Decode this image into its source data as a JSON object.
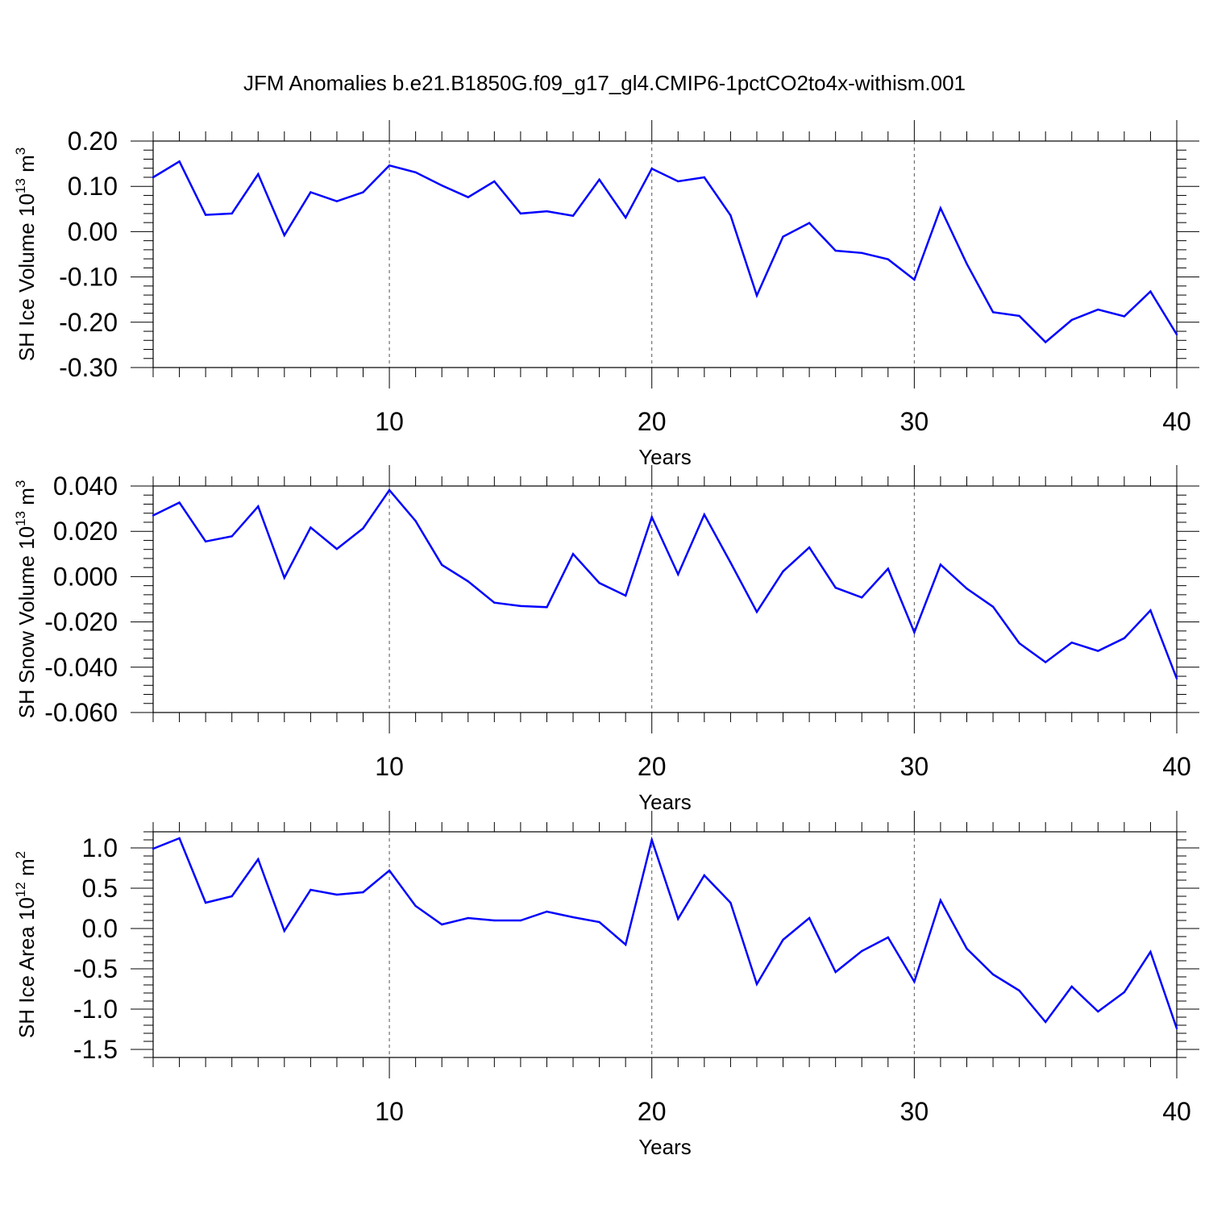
{
  "title": "JFM Anomalies b.e21.B1850G.f09_g17_gl4.CMIP6-1pctCO2to4x-withism.001",
  "colors": {
    "line": "#0000ff",
    "axis": "#000000",
    "grid": "#555555"
  },
  "chart_data": [
    {
      "type": "line",
      "ylabel_main": "SH Ice Volume 10",
      "ylabel_sup": "13",
      "ylabel_unit": " m",
      "ylabel_unit_sup": "3",
      "xlabel": "Years",
      "xlim": [
        1,
        40
      ],
      "ylim": [
        -0.3,
        0.2
      ],
      "x_ticks": [
        "10",
        "20",
        "30",
        "40"
      ],
      "y_ticks": [
        "0.20",
        "0.10",
        "0.00",
        "-0.10",
        "-0.20",
        "-0.30"
      ],
      "gridlines_x": [
        10,
        20,
        30
      ],
      "x": [
        1,
        2,
        3,
        4,
        5,
        6,
        7,
        8,
        9,
        10,
        11,
        12,
        13,
        14,
        15,
        16,
        17,
        18,
        19,
        20,
        21,
        22,
        23,
        24,
        25,
        26,
        27,
        28,
        29,
        30,
        31,
        32,
        33,
        34,
        35,
        36,
        37,
        38,
        39,
        40
      ],
      "values": [
        0.12,
        0.155,
        0.037,
        0.04,
        0.127,
        -0.008,
        0.087,
        0.067,
        0.087,
        0.146,
        0.131,
        0.102,
        0.076,
        0.111,
        0.04,
        0.045,
        0.035,
        0.115,
        0.031,
        0.139,
        0.111,
        0.12,
        0.036,
        -0.141,
        -0.011,
        0.019,
        -0.042,
        -0.047,
        -0.061,
        -0.106,
        0.052,
        -0.071,
        -0.178,
        -0.186,
        -0.244,
        -0.195,
        -0.172,
        -0.187,
        -0.132,
        -0.227
      ]
    },
    {
      "type": "line",
      "ylabel_main": "SH Snow Volume 10",
      "ylabel_sup": "13",
      "ylabel_unit": " m",
      "ylabel_unit_sup": "3",
      "xlabel": "Years",
      "xlim": [
        1,
        40
      ],
      "ylim": [
        -0.06,
        0.04
      ],
      "x_ticks": [
        "10",
        "20",
        "30",
        "40"
      ],
      "y_ticks": [
        "0.040",
        "0.020",
        "0.000",
        "-0.020",
        "-0.040",
        "-0.060"
      ],
      "gridlines_x": [
        10,
        20,
        30
      ],
      "x": [
        1,
        2,
        3,
        4,
        5,
        6,
        7,
        8,
        9,
        10,
        11,
        12,
        13,
        14,
        15,
        16,
        17,
        18,
        19,
        20,
        21,
        22,
        23,
        24,
        25,
        26,
        27,
        28,
        29,
        30,
        31,
        32,
        33,
        34,
        35,
        36,
        37,
        38,
        39,
        40
      ],
      "values": [
        0.027,
        0.0327,
        0.0155,
        0.0178,
        0.031,
        -0.0005,
        0.0217,
        0.0122,
        0.0213,
        0.0382,
        0.0246,
        0.0052,
        -0.0021,
        -0.0115,
        -0.013,
        -0.0135,
        0.01,
        -0.0028,
        -0.0084,
        0.0263,
        0.001,
        0.0274,
        0.0062,
        -0.0156,
        0.0023,
        0.0129,
        -0.0049,
        -0.0092,
        0.0035,
        -0.0246,
        0.0053,
        -0.0053,
        -0.0133,
        -0.0294,
        -0.0378,
        -0.0291,
        -0.0328,
        -0.0272,
        -0.0149,
        -0.045
      ]
    },
    {
      "type": "line",
      "ylabel_main": "SH Ice Area 10",
      "ylabel_sup": "12",
      "ylabel_unit": " m",
      "ylabel_unit_sup": "2",
      "xlabel": "Years",
      "xlim": [
        1,
        40
      ],
      "ylim": [
        -1.6,
        1.2
      ],
      "x_ticks": [
        "10",
        "20",
        "30",
        "40"
      ],
      "y_ticks": [
        "1.0",
        "0.5",
        "0.0",
        "-0.5",
        "-1.0",
        "-1.5"
      ],
      "gridlines_x": [
        10,
        20,
        30
      ],
      "x": [
        1,
        2,
        3,
        4,
        5,
        6,
        7,
        8,
        9,
        10,
        11,
        12,
        13,
        14,
        15,
        16,
        17,
        18,
        19,
        20,
        21,
        22,
        23,
        24,
        25,
        26,
        27,
        28,
        29,
        30,
        31,
        32,
        33,
        34,
        35,
        36,
        37,
        38,
        39,
        40
      ],
      "values": [
        0.99,
        1.12,
        0.32,
        0.4,
        0.86,
        -0.03,
        0.48,
        0.42,
        0.45,
        0.72,
        0.28,
        0.05,
        0.13,
        0.1,
        0.1,
        0.21,
        0.14,
        0.08,
        -0.2,
        1.1,
        0.12,
        0.66,
        0.32,
        -0.69,
        -0.14,
        0.13,
        -0.54,
        -0.28,
        -0.11,
        -0.66,
        0.35,
        -0.25,
        -0.57,
        -0.77,
        -1.16,
        -0.72,
        -1.03,
        -0.79,
        -0.29,
        -1.24
      ]
    }
  ]
}
